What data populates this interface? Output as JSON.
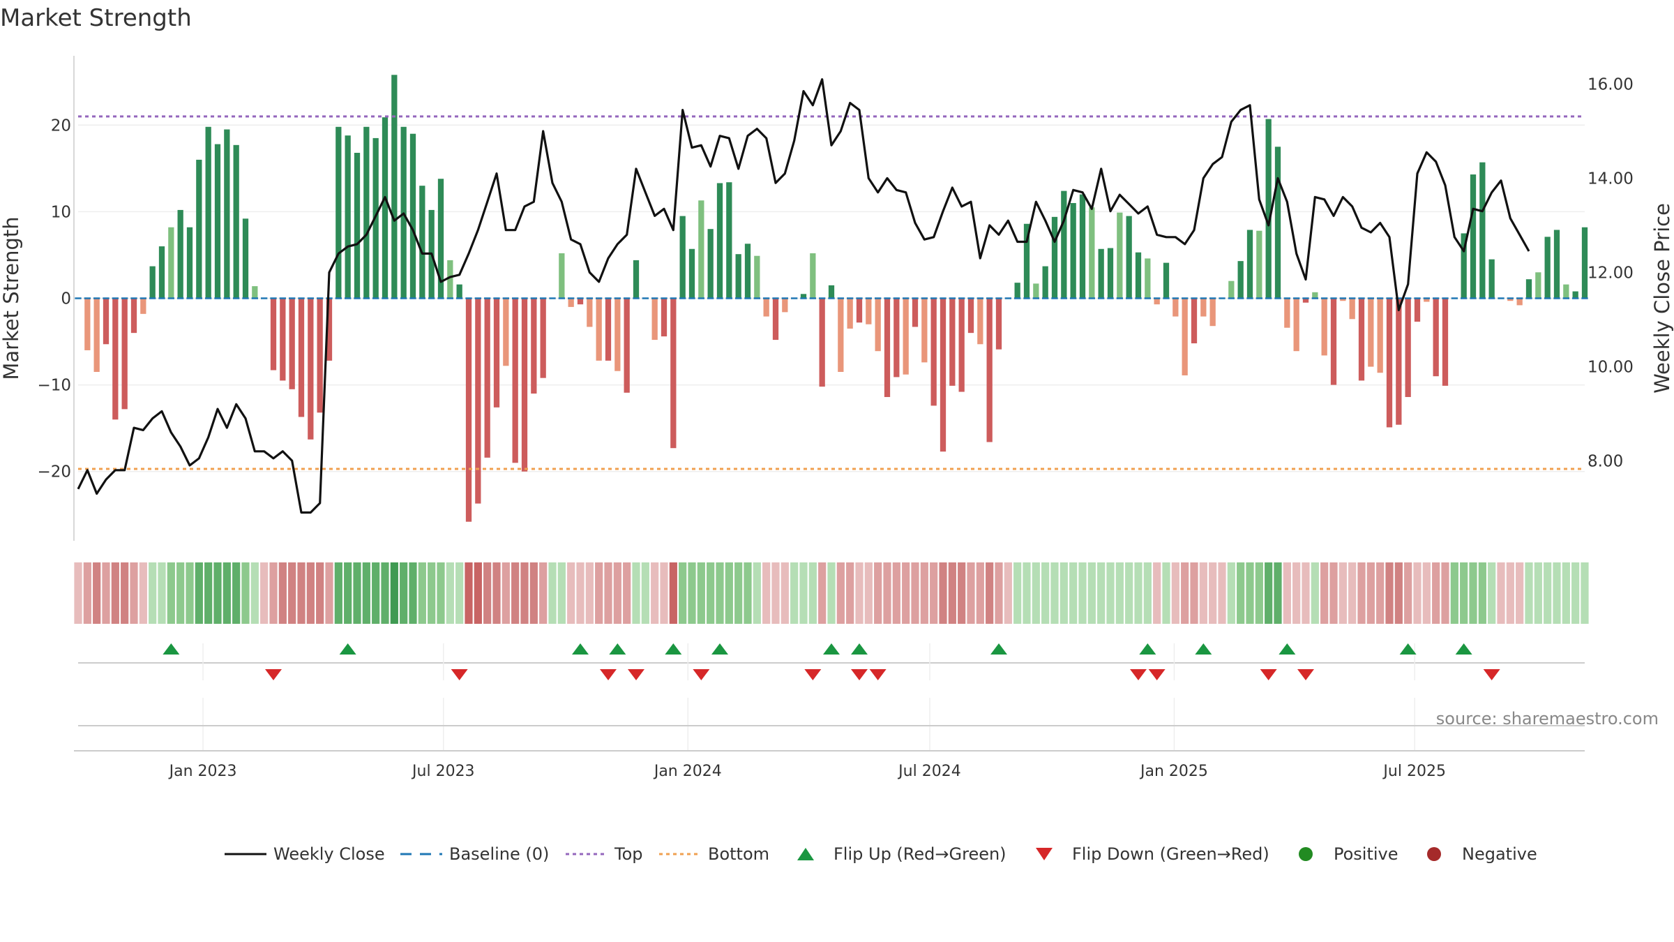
{
  "title": "Market Strength",
  "source": "source: sharemaestro.com",
  "colors": {
    "strong_green": "#2e8b57",
    "light_green": "#7fc07f",
    "strong_red": "#cd5c5c",
    "light_red": "#e9967a",
    "close_line": "#111111",
    "baseline": "#1f77b4",
    "top_line": "#9467bd",
    "bottom_line": "#f0a050",
    "flip_up": "#1a9641",
    "flip_down": "#d62728",
    "positive_dot": "#228b22",
    "negative_dot": "#a52a2a"
  },
  "legend": [
    {
      "key": "close",
      "label": "Weekly Close"
    },
    {
      "key": "baseline",
      "label": "Baseline (0)"
    },
    {
      "key": "top",
      "label": "Top"
    },
    {
      "key": "bottom",
      "label": "Bottom"
    },
    {
      "key": "flip_up",
      "label": "Flip Up (Red→Green)"
    },
    {
      "key": "flip_down",
      "label": "Flip Down (Green→Red)"
    },
    {
      "key": "positive",
      "label": "Positive"
    },
    {
      "key": "negative",
      "label": "Negative"
    }
  ],
  "chart_data": {
    "type": "bar",
    "title": "Market Strength",
    "ylabel": "Market Strength",
    "y2label": "Weekly Close Price",
    "ylim": [
      -28,
      28
    ],
    "y2lim": [
      6.3,
      16.6
    ],
    "yticks": [
      -20,
      -10,
      0,
      10,
      20
    ],
    "ytick_labels": [
      "−20",
      "−10",
      "0",
      "10",
      "20"
    ],
    "y2ticks": [
      8,
      10,
      12,
      14,
      16
    ],
    "y2tick_labels": [
      "8.00",
      "10.00",
      "12.00",
      "14.00",
      "16.00"
    ],
    "top_level": 21,
    "bottom_level": -19.7,
    "x_start": "2022-09-29",
    "x_step_days": 7,
    "xticks": [
      {
        "date": "2023-01-01",
        "label": "Jan 2023"
      },
      {
        "date": "2023-07-01",
        "label": "Jul 2023"
      },
      {
        "date": "2024-01-01",
        "label": "Jan 2024"
      },
      {
        "date": "2024-07-01",
        "label": "Jul 2024"
      },
      {
        "date": "2025-01-01",
        "label": "Jan 2025"
      },
      {
        "date": "2025-07-01",
        "label": "Jul 2025"
      }
    ],
    "strength": [
      0,
      -6,
      -8.5,
      -5.3,
      -14,
      -12.8,
      -4,
      -1.8,
      3.7,
      6,
      8.2,
      10.2,
      8.2,
      16,
      19.8,
      17.8,
      19.5,
      17.7,
      9.2,
      1.4,
      0,
      -8.3,
      -9.5,
      -10.5,
      -13.7,
      -16.3,
      -13.2,
      -7.2,
      19.8,
      18.8,
      16.8,
      19.8,
      18.5,
      20.9,
      25.8,
      19.8,
      19,
      13,
      10.2,
      13.8,
      4.4,
      1.6,
      -25.8,
      -23.7,
      -18.4,
      -12.6,
      -7.8,
      -19,
      -20,
      -11,
      -9.2,
      0,
      5.2,
      -1,
      -0.7,
      -3.3,
      -7.2,
      -7.2,
      -8.4,
      -10.9,
      4.4,
      0,
      -4.8,
      -4.4,
      -17.3,
      9.5,
      5.7,
      11.3,
      8,
      13.3,
      13.4,
      5.1,
      6.3,
      4.9,
      -2.1,
      -4.8,
      -1.6,
      0,
      0.5,
      5.2,
      -10.2,
      1.5,
      -8.5,
      -3.5,
      -2.8,
      -3,
      -6.1,
      -11.4,
      -9.1,
      -8.8,
      -3.3,
      -7.4,
      -12.4,
      -17.7,
      -10.1,
      -10.8,
      -4,
      -5.3,
      -16.6,
      -5.9,
      0,
      1.8,
      8.6,
      1.7,
      3.7,
      9.4,
      12.4,
      11,
      12,
      10.5,
      5.7,
      5.8,
      9.9,
      9.5,
      5.3,
      4.6,
      -0.7,
      4.1,
      -2.1,
      -8.9,
      -5.2,
      -2.1,
      -3.2,
      0,
      2,
      4.3,
      7.9,
      7.8,
      20.7,
      17.5,
      -3.4,
      -6.1,
      -0.5,
      0.7,
      -6.6,
      -10,
      -0.3,
      -2.4,
      -9.5,
      -7.9,
      -8.6,
      -14.9,
      -14.6,
      -11.4,
      -2.7,
      -0.4,
      -9,
      -10.1,
      0,
      7.5,
      14.3,
      15.7,
      4.5,
      0,
      -0.3,
      -0.8,
      2.2,
      3,
      7.1,
      7.9,
      1.6,
      0.8,
      8.2
    ],
    "weekly_close": [
      7.4,
      7.8,
      7.3,
      7.6,
      7.8,
      7.8,
      8.7,
      8.65,
      8.9,
      9.05,
      8.6,
      8.3,
      7.9,
      8.05,
      8.5,
      9.1,
      8.7,
      9.2,
      8.9,
      8.2,
      8.2,
      8.05,
      8.2,
      8.0,
      6.9,
      6.9,
      7.1,
      12.0,
      12.4,
      12.55,
      12.6,
      12.8,
      13.2,
      13.6,
      13.1,
      13.25,
      12.9,
      12.4,
      12.4,
      11.8,
      11.9,
      11.95,
      12.4,
      12.9,
      13.5,
      14.1,
      12.9,
      12.9,
      13.4,
      13.5,
      15.0,
      13.9,
      13.5,
      12.7,
      12.6,
      12.0,
      11.8,
      12.3,
      12.6,
      12.8,
      14.2,
      13.7,
      13.2,
      13.35,
      12.9,
      15.45,
      14.65,
      14.7,
      14.25,
      14.9,
      14.85,
      14.2,
      14.9,
      15.05,
      14.85,
      13.9,
      14.1,
      14.8,
      15.85,
      15.55,
      16.1,
      14.7,
      15.0,
      15.6,
      15.45,
      14.0,
      13.7,
      14.0,
      13.75,
      13.7,
      13.05,
      12.7,
      12.75,
      13.3,
      13.8,
      13.4,
      13.5,
      12.3,
      13.0,
      12.8,
      13.1,
      12.65,
      12.65,
      13.5,
      13.1,
      12.65,
      13.1,
      13.75,
      13.7,
      13.35,
      14.2,
      13.3,
      13.65,
      13.45,
      13.25,
      13.4,
      12.8,
      12.75,
      12.75,
      12.6,
      12.9,
      14.0,
      14.3,
      14.45,
      15.2,
      15.45,
      15.55,
      13.55,
      13.0,
      14.0,
      13.5,
      12.4,
      11.85,
      13.6,
      13.55,
      13.2,
      13.6,
      13.4,
      12.95,
      12.85,
      13.05,
      12.75,
      11.2,
      11.75,
      14.1,
      14.55,
      14.35,
      13.85,
      12.75,
      12.45,
      13.35,
      13.3,
      13.7,
      13.95,
      13.15,
      12.8,
      12.45
    ],
    "band_strength": [
      -1,
      -2,
      -3,
      -2,
      -3,
      -3,
      -2,
      -1,
      1,
      1,
      2,
      2,
      2,
      3,
      3,
      3,
      3,
      3,
      2,
      1,
      -1,
      -2,
      -3,
      -3,
      -3,
      -3,
      -3,
      -2,
      3,
      3,
      3,
      3,
      3,
      3,
      4,
      3,
      3,
      2,
      2,
      2,
      1,
      1,
      -4,
      -4,
      -3,
      -3,
      -2,
      -3,
      -3,
      -3,
      -2,
      1,
      1,
      -1,
      -1,
      -1,
      -2,
      -2,
      -2,
      -2,
      1,
      1,
      -1,
      -1,
      -4,
      2,
      2,
      2,
      2,
      2,
      2,
      2,
      2,
      1,
      -1,
      -1,
      -1,
      1,
      1,
      1,
      -2,
      1,
      -2,
      -2,
      -1,
      -1,
      -2,
      -2,
      -2,
      -2,
      -2,
      -2,
      -2,
      -3,
      -3,
      -3,
      -2,
      -2,
      -3,
      -2,
      -1,
      1,
      1,
      1,
      1,
      1,
      1,
      1,
      1,
      1,
      1,
      1,
      1,
      1,
      1,
      1,
      -1,
      1,
      -1,
      -2,
      -2,
      -1,
      -1,
      -1,
      1,
      2,
      2,
      2,
      3,
      3,
      -1,
      -1,
      -1,
      1,
      -2,
      -2,
      -1,
      -1,
      -2,
      -2,
      -2,
      -3,
      -3,
      -2,
      -1,
      -1,
      -2,
      -2,
      2,
      2,
      2,
      2,
      1,
      -1,
      -1,
      -1,
      1,
      1,
      1,
      1,
      1,
      1,
      1
    ],
    "flips_up": [
      "2022-12-08",
      "2023-04-20",
      "2023-10-12",
      "2023-11-09",
      "2023-12-21",
      "2024-01-25",
      "2024-04-18",
      "2024-05-09",
      "2024-08-22",
      "2024-12-12",
      "2025-01-23",
      "2025-03-27",
      "2025-06-26",
      "2025-08-07"
    ],
    "flips_down": [
      "2023-02-23",
      "2023-07-13",
      "2023-11-02",
      "2023-11-23",
      "2024-01-11",
      "2024-04-04",
      "2024-05-09",
      "2024-05-23",
      "2024-12-05",
      "2024-12-19",
      "2025-03-13",
      "2025-04-10",
      "2025-08-28"
    ]
  }
}
